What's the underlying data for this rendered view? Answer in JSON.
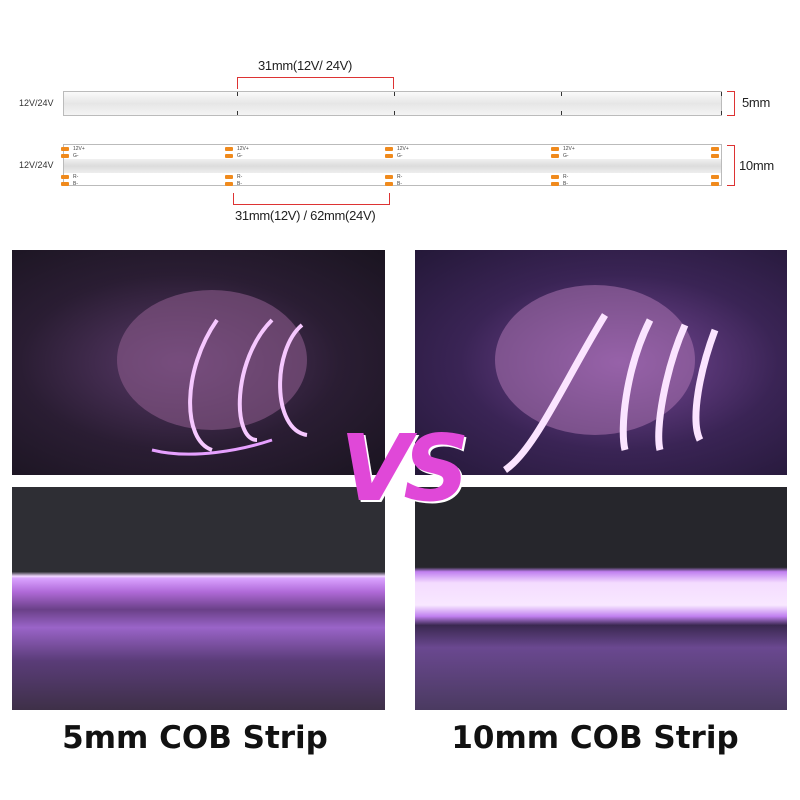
{
  "diagram": {
    "pitch_5mm": "31mm(12V/ 24V)",
    "pitch_10mm": "31mm(12V) / 62mm(24V)",
    "voltage_label": "12V/24V",
    "width_5mm": "5mm",
    "width_10mm": "10mm",
    "pad_labels": {
      "top_pos": "12V+",
      "top_neg": "G-",
      "bot_r": "R-",
      "bot_b": "B-"
    }
  },
  "vs_text": "VS",
  "captions": {
    "left": "5mm COB Strip",
    "right": "10mm COB Strip"
  },
  "colors": {
    "glow": "#e070ff",
    "accent": "#e048d8",
    "bracket": "#dd3333",
    "pad": "#f08a1c"
  }
}
